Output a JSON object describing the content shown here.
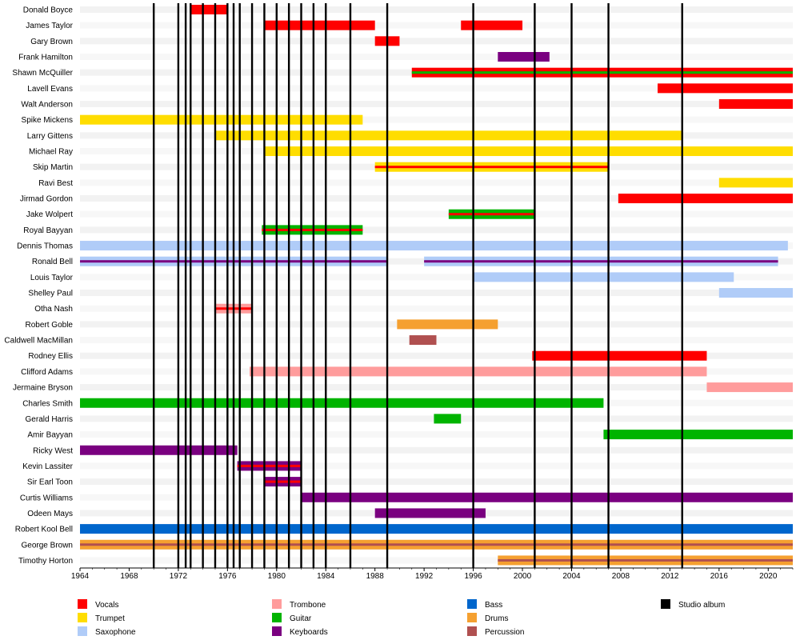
{
  "chart_data": {
    "type": "timeline",
    "x_range": [
      1964,
      2022
    ],
    "x_ticks": [
      1964,
      1968,
      1972,
      1976,
      1980,
      1984,
      1988,
      1992,
      1996,
      2000,
      2004,
      2008,
      2012,
      2016,
      2020
    ],
    "albums": [
      1970,
      1972,
      1972.6,
      1973,
      1974,
      1975,
      1976,
      1976.5,
      1977,
      1978,
      1979,
      1980,
      1981,
      1982,
      1983,
      1984,
      1986,
      1989,
      1996,
      2001,
      2004,
      2007,
      2013
    ],
    "roles": {
      "vocals": {
        "label": "Vocals",
        "color": "#ff0000"
      },
      "trumpet": {
        "label": "Trumpet",
        "color": "#ffdd00"
      },
      "saxophone": {
        "label": "Saxophone",
        "color": "#b0ccf8"
      },
      "trombone": {
        "label": "Trombone",
        "color": "#ff9c9c"
      },
      "guitar": {
        "label": "Guitar",
        "color": "#00b400"
      },
      "keyboards": {
        "label": "Keyboards",
        "color": "#7a0080"
      },
      "bass": {
        "label": "Bass",
        "color": "#0066cc"
      },
      "drums": {
        "label": "Drums",
        "color": "#f5a030"
      },
      "percussion": {
        "label": "Percussion",
        "color": "#b05050"
      },
      "album": {
        "label": "Studio album",
        "color": "#000000"
      }
    },
    "legend_order": [
      "vocals",
      "trumpet",
      "saxophone",
      "trombone",
      "guitar",
      "keyboards",
      "bass",
      "drums",
      "percussion",
      "album"
    ],
    "members": [
      {
        "name": "Donald Boyce",
        "bars": [
          {
            "start": 1973,
            "end": 1976,
            "role": "vocals"
          }
        ]
      },
      {
        "name": "James Taylor",
        "bars": [
          {
            "start": 1979,
            "end": 1988,
            "role": "vocals"
          },
          {
            "start": 1995,
            "end": 2000,
            "role": "vocals"
          }
        ]
      },
      {
        "name": "Gary Brown",
        "bars": [
          {
            "start": 1988,
            "end": 1990,
            "role": "vocals"
          }
        ]
      },
      {
        "name": "Frank Hamilton",
        "bars": [
          {
            "start": 1998,
            "end": 2002.2,
            "role": "keyboards"
          }
        ]
      },
      {
        "name": "Shawn McQuiller",
        "bars": [
          {
            "start": 1991,
            "end": 2022,
            "role": "vocals",
            "stripe": "guitar"
          }
        ]
      },
      {
        "name": "Lavell Evans",
        "bars": [
          {
            "start": 2011,
            "end": 2022,
            "role": "vocals"
          }
        ]
      },
      {
        "name": "Walt Anderson",
        "bars": [
          {
            "start": 2016,
            "end": 2022,
            "role": "vocals"
          }
        ]
      },
      {
        "name": "Spike Mickens",
        "bars": [
          {
            "start": 1964,
            "end": 1987,
            "role": "trumpet"
          }
        ]
      },
      {
        "name": "Larry Gittens",
        "bars": [
          {
            "start": 1975,
            "end": 2013,
            "role": "trumpet"
          }
        ]
      },
      {
        "name": "Michael Ray",
        "bars": [
          {
            "start": 1979,
            "end": 2022,
            "role": "trumpet"
          }
        ]
      },
      {
        "name": "Skip Martin",
        "bars": [
          {
            "start": 1988,
            "end": 2007,
            "role": "trumpet",
            "stripe": "vocals"
          }
        ]
      },
      {
        "name": "Ravi Best",
        "bars": [
          {
            "start": 2016,
            "end": 2022,
            "role": "trumpet"
          }
        ]
      },
      {
        "name": "Jirmad Gordon",
        "bars": [
          {
            "start": 2007.8,
            "end": 2022,
            "role": "vocals"
          }
        ]
      },
      {
        "name": "Jake Wolpert",
        "bars": [
          {
            "start": 1994,
            "end": 2001,
            "role": "guitar",
            "stripe": "vocals"
          }
        ]
      },
      {
        "name": "Royal Bayyan",
        "bars": [
          {
            "start": 1978.8,
            "end": 1987,
            "role": "guitar",
            "stripe": "vocals"
          }
        ]
      },
      {
        "name": "Dennis Thomas",
        "bars": [
          {
            "start": 1964,
            "end": 2021.6,
            "role": "saxophone"
          }
        ]
      },
      {
        "name": "Ronald Bell",
        "bars": [
          {
            "start": 1964,
            "end": 1989,
            "role": "saxophone",
            "stripe": "keyboards"
          },
          {
            "start": 1992,
            "end": 2020.8,
            "role": "saxophone",
            "stripe": "keyboards"
          }
        ]
      },
      {
        "name": "Louis Taylor",
        "bars": [
          {
            "start": 1996,
            "end": 2017.2,
            "role": "saxophone"
          }
        ]
      },
      {
        "name": "Shelley Paul",
        "bars": [
          {
            "start": 2016,
            "end": 2022,
            "role": "saxophone"
          }
        ]
      },
      {
        "name": "Otha Nash",
        "bars": [
          {
            "start": 1975,
            "end": 1978,
            "role": "trombone",
            "stripe": "vocals"
          }
        ]
      },
      {
        "name": "Robert Goble",
        "bars": [
          {
            "start": 1989.8,
            "end": 1998,
            "role": "drums"
          }
        ]
      },
      {
        "name": "Caldwell MacMillan",
        "bars": [
          {
            "start": 1990.8,
            "end": 1993,
            "role": "percussion"
          }
        ]
      },
      {
        "name": "Rodney Ellis",
        "bars": [
          {
            "start": 2000.8,
            "end": 2015,
            "role": "vocals"
          }
        ]
      },
      {
        "name": "Clifford Adams",
        "bars": [
          {
            "start": 1977.8,
            "end": 2015,
            "role": "trombone"
          }
        ]
      },
      {
        "name": "Jermaine Bryson",
        "bars": [
          {
            "start": 2015,
            "end": 2022,
            "role": "trombone"
          }
        ]
      },
      {
        "name": "Charles Smith",
        "bars": [
          {
            "start": 1964,
            "end": 2006.6,
            "role": "guitar"
          }
        ]
      },
      {
        "name": "Gerald Harris",
        "bars": [
          {
            "start": 1992.8,
            "end": 1995,
            "role": "guitar"
          }
        ]
      },
      {
        "name": "Amir Bayyan",
        "bars": [
          {
            "start": 2006.6,
            "end": 2022,
            "role": "guitar"
          }
        ]
      },
      {
        "name": "Ricky West",
        "bars": [
          {
            "start": 1964,
            "end": 1976.8,
            "role": "keyboards"
          }
        ]
      },
      {
        "name": "Kevin Lassiter",
        "bars": [
          {
            "start": 1976.8,
            "end": 1982,
            "role": "keyboards",
            "stripe": "vocals"
          }
        ]
      },
      {
        "name": "Sir Earl Toon",
        "bars": [
          {
            "start": 1979,
            "end": 1982,
            "role": "keyboards",
            "stripe": "vocals"
          }
        ]
      },
      {
        "name": "Curtis Williams",
        "bars": [
          {
            "start": 1982,
            "end": 2022,
            "role": "keyboards"
          }
        ]
      },
      {
        "name": "Odeen Mays",
        "bars": [
          {
            "start": 1988,
            "end": 1997,
            "role": "keyboards"
          }
        ]
      },
      {
        "name": "Robert Kool Bell",
        "bars": [
          {
            "start": 1964,
            "end": 2022,
            "role": "bass"
          }
        ]
      },
      {
        "name": "George Brown",
        "bars": [
          {
            "start": 1964,
            "end": 2022,
            "role": "drums",
            "stripe": "percussion"
          }
        ]
      },
      {
        "name": "Timothy Horton",
        "bars": [
          {
            "start": 1998,
            "end": 2022,
            "role": "drums",
            "stripe": "percussion"
          }
        ]
      }
    ]
  }
}
